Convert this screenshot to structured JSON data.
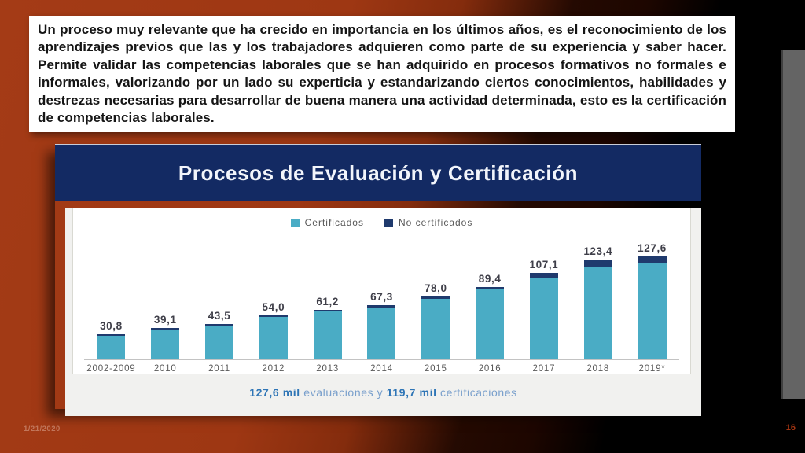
{
  "intro": {
    "text": "Un proceso muy relevante que ha crecido en  importancia en los últimos años,  es el reconocimiento de los aprendizajes previos que las y los trabajadores adquieren como parte de su experiencia y saber hacer. Permite validar las competencias laborales que se han adquirido en procesos formativos no formales e informales, valorizando por un lado su experticia y estandarizando ciertos conocimientos, habilidades y destrezas necesarias para desarrollar de buena manera una actividad determinada, esto es la certificación de competencias laborales."
  },
  "chart_data": {
    "type": "stacked-bar",
    "title": "Procesos de Evaluación y Certificación",
    "categories": [
      "2002-2009",
      "2010",
      "2011",
      "2012",
      "2013",
      "2014",
      "2015",
      "2016",
      "2017",
      "2018",
      "2019*"
    ],
    "totals": [
      30.8,
      39.1,
      43.5,
      54.0,
      61.2,
      67.3,
      78.0,
      89.4,
      107.1,
      123.4,
      127.6
    ],
    "total_labels": [
      "30,8",
      "39,1",
      "43,5",
      "54,0",
      "61,2",
      "67,3",
      "78,0",
      "89,4",
      "107,1",
      "123,4",
      "127,6"
    ],
    "series": [
      {
        "name": "Certificados",
        "color": "#4aacc5",
        "values": [
          29.3,
          37.6,
          41.7,
          51.8,
          58.9,
          64.8,
          75.2,
          86.2,
          100.6,
          114.9,
          119.7
        ]
      },
      {
        "name": "No certificados",
        "color": "#1f3a6d",
        "values": [
          1.5,
          1.5,
          1.8,
          2.2,
          2.3,
          2.5,
          2.8,
          3.2,
          6.5,
          8.5,
          7.9
        ]
      }
    ],
    "legend_position": "top",
    "ylim": [
      0,
      145
    ],
    "grid": false,
    "caption": {
      "value1": "127,6 mil",
      "text1": " evaluaciones y ",
      "value2": "119,7 mil",
      "text2": " certificaciones"
    },
    "colors": {
      "header_band": "#132a63",
      "certificados": "#4aacc5",
      "no_certificados": "#1f3a6d",
      "caption_bold": "#2e75b6",
      "caption_light": "#7aa0cc"
    }
  },
  "footer": {
    "date": "1/21/2020",
    "page": "16"
  }
}
